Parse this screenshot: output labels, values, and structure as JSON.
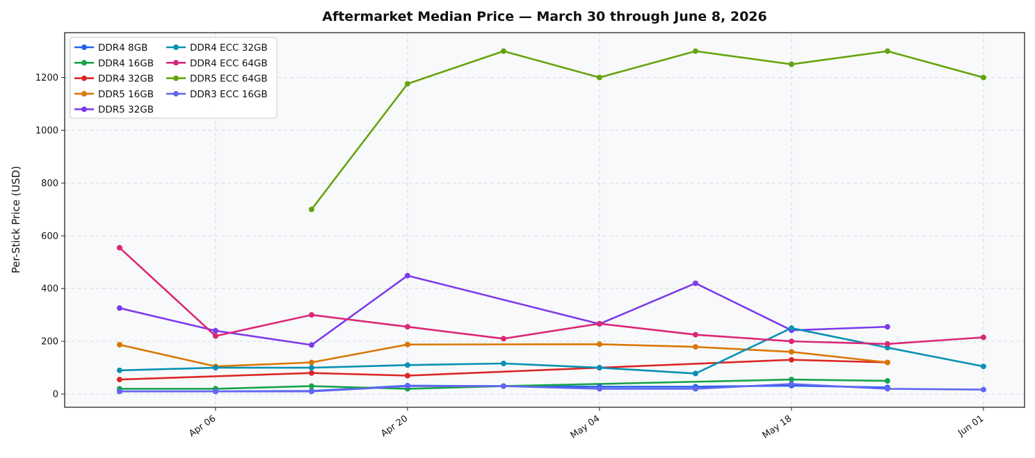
{
  "chart_data": {
    "type": "line",
    "title": "Aftermarket Median Price — March 30 through June 8, 2026",
    "xlabel": "",
    "ylabel": "Per-Stick Price (USD)",
    "x_ticks": [
      "Apr 06",
      "Apr 20",
      "May 04",
      "May 18",
      "Jun 01"
    ],
    "y_ticks": [
      "0",
      "200",
      "400",
      "600",
      "800",
      "1000",
      "1200"
    ],
    "xlim": [
      "2026-03-26",
      "2026-06-04"
    ],
    "ylim": [
      -50,
      1370
    ],
    "grid": true,
    "legend_position": "top-left",
    "series": [
      {
        "name": "DDR4 8GB",
        "color": "#2563eb",
        "points": [
          [
            "2026-03-30",
            10
          ],
          [
            "2026-04-06",
            10
          ],
          [
            "2026-04-13",
            12
          ],
          [
            "2026-04-20",
            32
          ],
          [
            "2026-04-27",
            30
          ],
          [
            "2026-05-04",
            28
          ],
          [
            "2026-05-11",
            28
          ],
          [
            "2026-05-18",
            32
          ],
          [
            "2026-05-25",
            25
          ]
        ]
      },
      {
        "name": "DDR4 16GB",
        "color": "#16a34a",
        "points": [
          [
            "2026-03-30",
            20
          ],
          [
            "2026-04-06",
            20
          ],
          [
            "2026-04-13",
            30
          ],
          [
            "2026-04-20",
            20
          ],
          [
            "2026-04-27",
            30
          ],
          [
            "2026-05-18",
            55
          ],
          [
            "2026-05-25",
            50
          ]
        ]
      },
      {
        "name": "DDR4 32GB",
        "color": "#dc2626",
        "points": [
          [
            "2026-03-30",
            55
          ],
          [
            "2026-04-13",
            80
          ],
          [
            "2026-04-20",
            70
          ],
          [
            "2026-05-04",
            100
          ],
          [
            "2026-05-18",
            130
          ],
          [
            "2026-05-25",
            120
          ]
        ]
      },
      {
        "name": "DDR5 16GB",
        "color": "#d97706",
        "points": [
          [
            "2026-03-30",
            187
          ],
          [
            "2026-04-06",
            105
          ],
          [
            "2026-04-13",
            120
          ],
          [
            "2026-04-20",
            188
          ],
          [
            "2026-05-04",
            189
          ],
          [
            "2026-05-11",
            179
          ],
          [
            "2026-05-18",
            160
          ],
          [
            "2026-05-25",
            120
          ]
        ]
      },
      {
        "name": "DDR5 32GB",
        "color": "#7c3aed",
        "points": [
          [
            "2026-03-30",
            326
          ],
          [
            "2026-04-06",
            240
          ],
          [
            "2026-04-13",
            186
          ],
          [
            "2026-04-20",
            449
          ],
          [
            "2026-05-04",
            266
          ],
          [
            "2026-05-11",
            420
          ],
          [
            "2026-05-18",
            242
          ],
          [
            "2026-05-25",
            255
          ]
        ]
      },
      {
        "name": "DDR4 ECC 32GB",
        "color": "#0891b2",
        "points": [
          [
            "2026-03-30",
            90
          ],
          [
            "2026-04-06",
            100
          ],
          [
            "2026-04-13",
            100
          ],
          [
            "2026-04-20",
            110
          ],
          [
            "2026-04-27",
            116
          ],
          [
            "2026-05-04",
            100
          ],
          [
            "2026-05-11",
            78
          ],
          [
            "2026-05-18",
            250
          ],
          [
            "2026-05-25",
            176
          ],
          [
            "2026-06-01",
            105
          ]
        ]
      },
      {
        "name": "DDR4 ECC 64GB",
        "color": "#db2777",
        "points": [
          [
            "2026-03-30",
            555
          ],
          [
            "2026-04-06",
            220
          ],
          [
            "2026-04-13",
            300
          ],
          [
            "2026-04-20",
            255
          ],
          [
            "2026-04-27",
            210
          ],
          [
            "2026-05-04",
            267
          ],
          [
            "2026-05-11",
            225
          ],
          [
            "2026-05-18",
            200
          ],
          [
            "2026-05-25",
            190
          ],
          [
            "2026-06-01",
            215
          ]
        ]
      },
      {
        "name": "DDR5 ECC 64GB",
        "color": "#65a30d",
        "points": [
          [
            "2026-04-13",
            700
          ],
          [
            "2026-04-20",
            1176
          ],
          [
            "2026-04-27",
            1300
          ],
          [
            "2026-05-04",
            1200
          ],
          [
            "2026-05-11",
            1300
          ],
          [
            "2026-05-18",
            1250
          ],
          [
            "2026-05-25",
            1300
          ],
          [
            "2026-06-01",
            1200
          ]
        ]
      },
      {
        "name": "DDR3 ECC 16GB",
        "color": "#6366f1",
        "points": [
          [
            "2026-03-30",
            10
          ],
          [
            "2026-04-06",
            10
          ],
          [
            "2026-04-13",
            10
          ],
          [
            "2026-04-20",
            30
          ],
          [
            "2026-04-27",
            30
          ],
          [
            "2026-05-04",
            20
          ],
          [
            "2026-05-11",
            20
          ],
          [
            "2026-05-18",
            38
          ],
          [
            "2026-05-25",
            20
          ],
          [
            "2026-06-01",
            17
          ]
        ]
      }
    ]
  }
}
